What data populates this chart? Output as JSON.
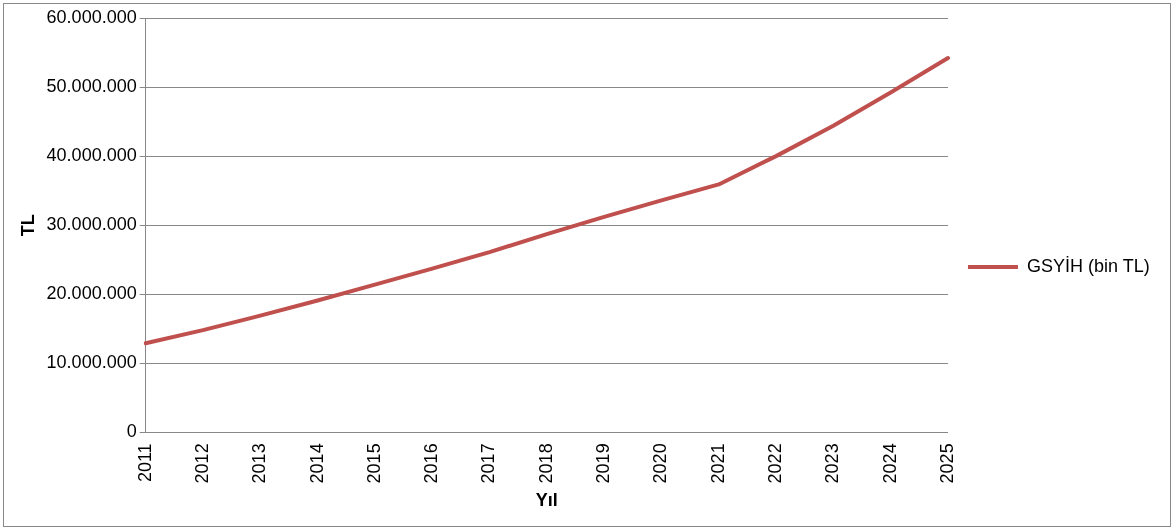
{
  "chart_data": {
    "type": "line",
    "xlabel": "Yıl",
    "ylabel": "TL",
    "categories": [
      "2011",
      "2012",
      "2013",
      "2014",
      "2015",
      "2016",
      "2017",
      "2018",
      "2019",
      "2020",
      "2021",
      "2022",
      "2023",
      "2024",
      "2025"
    ],
    "series": [
      {
        "name": "GSYİH (bin TL)",
        "color": "#c0504d",
        "values": [
          12900000,
          14800000,
          16900000,
          19100000,
          21400000,
          23700000,
          26100000,
          28700000,
          31200000,
          33600000,
          35900000,
          40000000,
          44400000,
          49200000,
          54200000
        ]
      }
    ],
    "ylim": [
      0,
      60000000
    ],
    "yticks": [
      0,
      {
        "value": 10000000,
        "label": "10.000.000"
      },
      {
        "value": 20000000,
        "label": "20.000.000"
      },
      {
        "value": 30000000,
        "label": "30.000.000"
      },
      {
        "value": 40000000,
        "label": "40.000.000"
      },
      {
        "value": 50000000,
        "label": "50.000.000"
      },
      {
        "value": 60000000,
        "label": "60.000.000"
      }
    ],
    "grid": "y",
    "legend": "right",
    "marker": "none",
    "line_style": "solid"
  }
}
